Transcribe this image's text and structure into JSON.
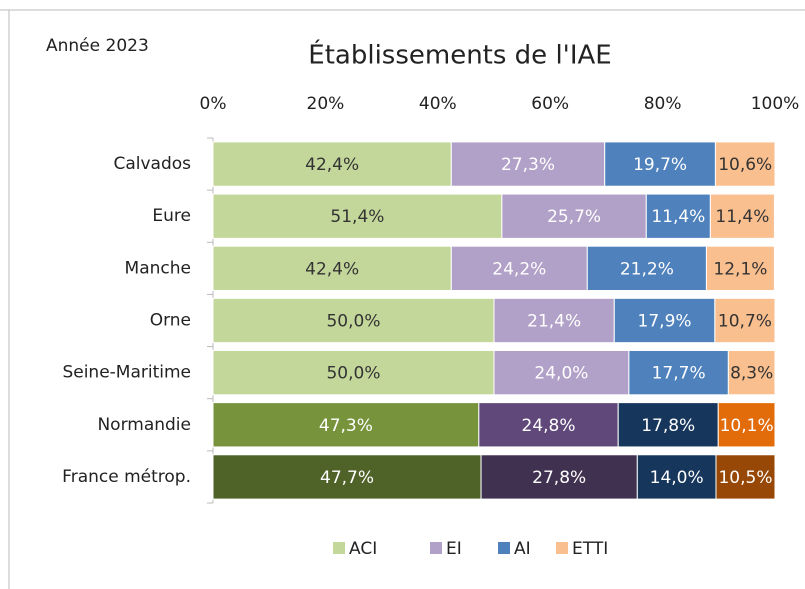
{
  "chart_data": {
    "type": "stacked-bar-100",
    "subtitle": "Année 2023",
    "title": "Établissements de l'IAE",
    "categories": [
      "Calvados",
      "Eure",
      "Manche",
      "Orne",
      "Seine-Maritime",
      "Normandie",
      "France métrop."
    ],
    "xlim": [
      0,
      100
    ],
    "xticks": [
      {
        "value": 0,
        "label": "0%"
      },
      {
        "value": 20,
        "label": "20%"
      },
      {
        "value": 40,
        "label": "40%"
      },
      {
        "value": 60,
        "label": "60%"
      },
      {
        "value": 80,
        "label": "80%"
      },
      {
        "value": 100,
        "label": "100%"
      }
    ],
    "legend": "bottom",
    "series": [
      {
        "name": "ACI",
        "color": "#c4d79b",
        "colors": [
          "#c4d79b",
          "#c4d79b",
          "#c4d79b",
          "#c4d79b",
          "#c4d79b",
          "#77933c",
          "#4f6228"
        ],
        "values": [
          42.4,
          51.4,
          42.4,
          50.0,
          50.0,
          47.3,
          47.7
        ],
        "value_labels": [
          "42,4%",
          "51,4%",
          "42,4%",
          "50,0%",
          "50,0%",
          "47,3%",
          "47,7%"
        ]
      },
      {
        "name": "EI",
        "color": "#b1a0c7",
        "colors": [
          "#b1a0c7",
          "#b1a0c7",
          "#b1a0c7",
          "#b1a0c7",
          "#b1a0c7",
          "#60497a",
          "#403151"
        ],
        "values": [
          27.3,
          25.7,
          24.2,
          21.4,
          24.0,
          24.8,
          27.8
        ],
        "value_labels": [
          "27,3%",
          "25,7%",
          "24,2%",
          "21,4%",
          "24,0%",
          "24,8%",
          "27,8%"
        ]
      },
      {
        "name": "AI",
        "color": "#4f81bd",
        "colors": [
          "#4f81bd",
          "#4f81bd",
          "#4f81bd",
          "#4f81bd",
          "#4f81bd",
          "#16365c",
          "#16365c"
        ],
        "values": [
          19.7,
          11.4,
          21.2,
          17.9,
          17.7,
          17.8,
          14.0
        ],
        "value_labels": [
          "19,7%",
          "11,4%",
          "21,2%",
          "17,9%",
          "17,7%",
          "17,8%",
          "14,0%"
        ]
      },
      {
        "name": "ETTI",
        "color": "#fabf8f",
        "colors": [
          "#fabf8f",
          "#fabf8f",
          "#fabf8f",
          "#fabf8f",
          "#fabf8f",
          "#e26b0a",
          "#974706"
        ],
        "values": [
          10.6,
          11.4,
          12.1,
          10.7,
          8.3,
          10.1,
          10.5
        ],
        "value_labels": [
          "10,6%",
          "11,4%",
          "12,1%",
          "10,7%",
          "8,3%",
          "10,1%",
          "10,5%"
        ]
      }
    ]
  }
}
